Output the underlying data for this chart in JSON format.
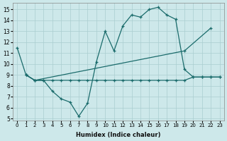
{
  "xlabel": "Humidex (Indice chaleur)",
  "xlim": [
    -0.5,
    23.5
  ],
  "ylim": [
    4.8,
    15.6
  ],
  "yticks": [
    5,
    6,
    7,
    8,
    9,
    10,
    11,
    12,
    13,
    14,
    15
  ],
  "xticks": [
    0,
    1,
    2,
    3,
    4,
    5,
    6,
    7,
    8,
    9,
    10,
    11,
    12,
    13,
    14,
    15,
    16,
    17,
    18,
    19,
    20,
    21,
    22,
    23
  ],
  "bg_color": "#cde8ea",
  "line_color": "#1a6b6b",
  "grid_color": "#aacdd0",
  "line1_x": [
    0,
    1,
    2,
    3,
    4,
    5,
    6,
    7,
    8,
    9,
    10,
    11,
    12,
    13,
    14,
    15,
    16,
    17,
    18,
    19,
    20,
    21,
    22,
    23
  ],
  "line1_y": [
    11.5,
    9.0,
    8.5,
    8.5,
    7.5,
    6.8,
    6.5,
    5.2,
    6.4,
    10.2,
    13.0,
    11.2,
    13.5,
    14.5,
    14.3,
    15.0,
    15.2,
    14.5,
    14.1,
    9.5,
    8.8,
    8.8,
    8.8,
    8.8
  ],
  "line2_x": [
    1,
    2,
    19,
    22
  ],
  "line2_y": [
    9.0,
    8.5,
    11.2,
    13.3
  ],
  "line3_x": [
    1,
    2,
    3,
    4,
    5,
    6,
    7,
    8,
    9,
    10,
    11,
    12,
    13,
    14,
    15,
    16,
    17,
    18,
    19,
    20,
    21,
    22,
    23
  ],
  "line3_y": [
    9.0,
    8.5,
    8.5,
    8.5,
    8.5,
    8.5,
    8.5,
    8.5,
    8.5,
    8.5,
    8.5,
    8.5,
    8.5,
    8.5,
    8.5,
    8.5,
    8.5,
    8.5,
    8.5,
    8.8,
    8.8,
    8.8,
    8.8
  ]
}
